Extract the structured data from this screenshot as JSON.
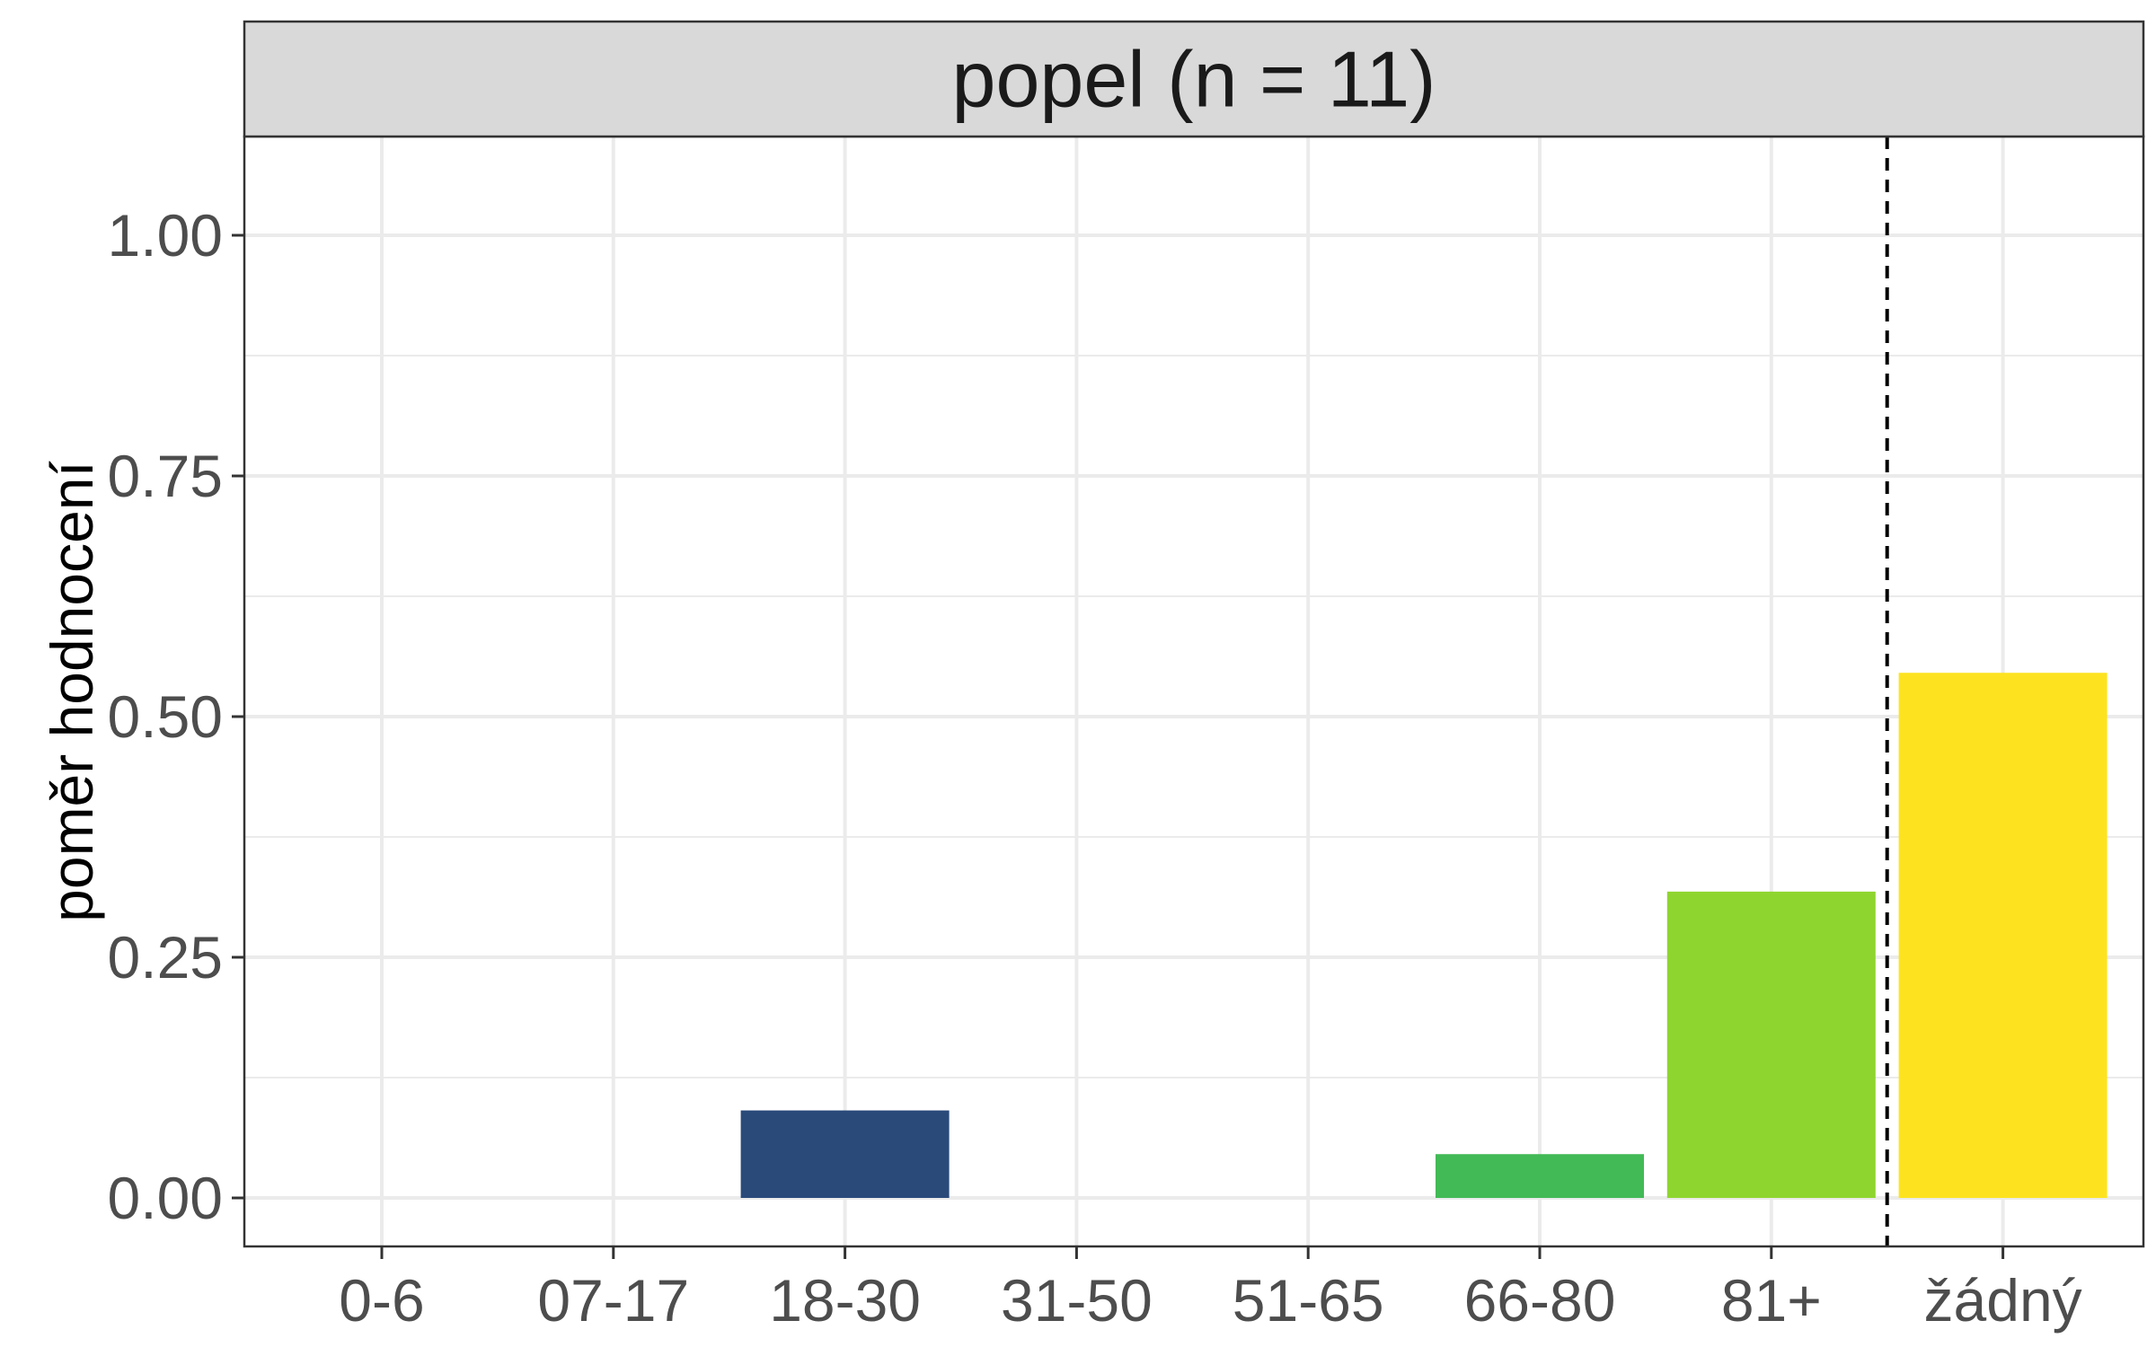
{
  "chart_data": {
    "type": "bar",
    "facet_title": "popel (n = 11)",
    "ylabel": "poměr hodnocení",
    "xlabel": "",
    "categories": [
      "0-6",
      "07-17",
      "18-30",
      "31-50",
      "51-65",
      "66-80",
      "81+",
      "žádný"
    ],
    "values": [
      0,
      0,
      0.0909,
      0,
      0,
      0.0455,
      0.3182,
      0.5455
    ],
    "bar_colors": [
      "#440154",
      "#46337E",
      "#2A4A7A",
      "#2E6F8E",
      "#21918C",
      "#42BA56",
      "#8FD530",
      "#FDE31F"
    ],
    "ylim": [
      -0.05,
      1.1
    ],
    "yticks": [
      0.0,
      0.25,
      0.5,
      0.75,
      1.0
    ],
    "ytick_labels": [
      "0.00",
      "0.25",
      "0.50",
      "0.75",
      "1.00"
    ],
    "separator_after_category": "81+",
    "grid": true
  }
}
